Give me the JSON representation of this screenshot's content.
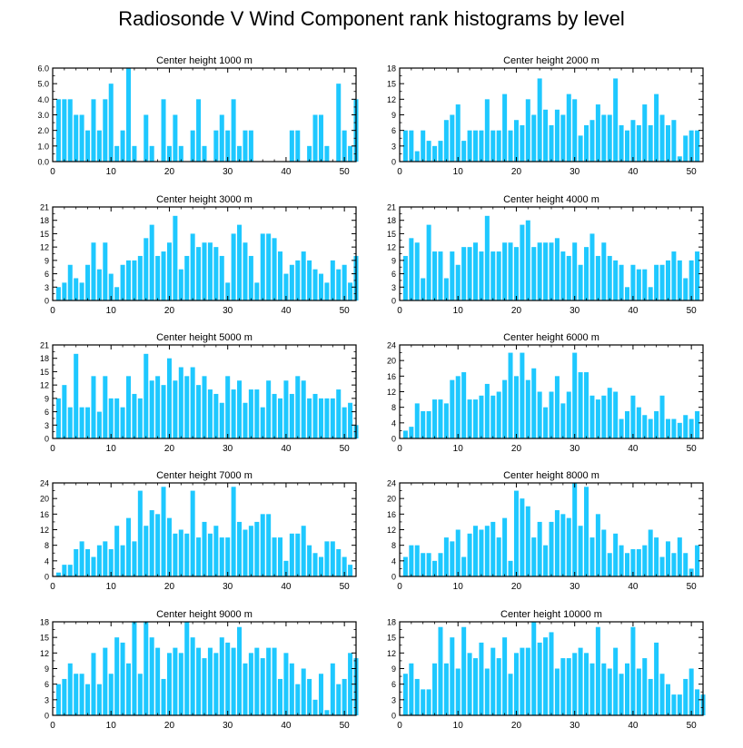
{
  "title": "Radiosonde V Wind Component rank histograms by level",
  "colors": {
    "bar": "#1ec8ff",
    "axis": "#000000",
    "background": "#ffffff"
  },
  "chart_data": [
    {
      "type": "bar",
      "title": "Center height 1000 m",
      "xlim": [
        0,
        52
      ],
      "ylim": [
        0,
        6
      ],
      "xticks": [
        0,
        10,
        20,
        30,
        40,
        50
      ],
      "yticks": [
        0,
        1,
        2,
        3,
        4,
        5,
        6
      ],
      "ytick_labels": [
        "0.0",
        "1.0",
        "2.0",
        "3.0",
        "4.0",
        "5.0",
        "6.0"
      ],
      "categories": [
        1,
        2,
        3,
        4,
        5,
        6,
        7,
        8,
        9,
        10,
        11,
        12,
        13,
        14,
        15,
        16,
        17,
        18,
        19,
        20,
        21,
        22,
        23,
        24,
        25,
        26,
        27,
        28,
        29,
        30,
        31,
        32,
        33,
        34,
        35,
        36,
        37,
        38,
        39,
        40,
        41,
        42,
        43,
        44,
        45,
        46,
        47,
        48,
        49,
        50,
        51,
        52
      ],
      "values": [
        4,
        4,
        4,
        3,
        3,
        2,
        4,
        2,
        4,
        5,
        1,
        2,
        6,
        1,
        0,
        3,
        1,
        0,
        4,
        1,
        3,
        1,
        0,
        2,
        4,
        1,
        0,
        2,
        3,
        2,
        4,
        1,
        2,
        2,
        0,
        0,
        0,
        0,
        0,
        0,
        2,
        2,
        0,
        1,
        3,
        3,
        1,
        0,
        5,
        2,
        1,
        4
      ],
      "xlabel": "",
      "ylabel": ""
    },
    {
      "type": "bar",
      "title": "Center height 2000 m",
      "xlim": [
        0,
        52
      ],
      "ylim": [
        0,
        18
      ],
      "xticks": [
        0,
        10,
        20,
        30,
        40,
        50
      ],
      "yticks": [
        0,
        3,
        6,
        9,
        12,
        15,
        18
      ],
      "ytick_labels": [
        "0",
        "3",
        "6",
        "9",
        "12",
        "15",
        "18"
      ],
      "categories": [
        1,
        2,
        3,
        4,
        5,
        6,
        7,
        8,
        9,
        10,
        11,
        12,
        13,
        14,
        15,
        16,
        17,
        18,
        19,
        20,
        21,
        22,
        23,
        24,
        25,
        26,
        27,
        28,
        29,
        30,
        31,
        32,
        33,
        34,
        35,
        36,
        37,
        38,
        39,
        40,
        41,
        42,
        43,
        44,
        45,
        46,
        47,
        48,
        49,
        50,
        51,
        52
      ],
      "values": [
        6,
        6,
        2,
        6,
        4,
        3,
        4,
        8,
        9,
        11,
        4,
        6,
        6,
        6,
        12,
        6,
        6,
        13,
        6,
        8,
        7,
        12,
        9,
        16,
        10,
        7,
        10,
        9,
        13,
        12,
        5,
        7,
        8,
        11,
        9,
        9,
        16,
        7,
        6,
        8,
        7,
        11,
        7,
        13,
        9,
        7,
        8,
        1,
        5,
        6,
        6,
        0
      ],
      "xlabel": "",
      "ylabel": ""
    },
    {
      "type": "bar",
      "title": "Center height 3000 m",
      "xlim": [
        0,
        52
      ],
      "ylim": [
        0,
        21
      ],
      "xticks": [
        0,
        10,
        20,
        30,
        40,
        50
      ],
      "yticks": [
        0,
        3,
        6,
        9,
        12,
        15,
        18,
        21
      ],
      "ytick_labels": [
        "0",
        "3",
        "6",
        "9",
        "12",
        "15",
        "18",
        "21"
      ],
      "categories": [
        1,
        2,
        3,
        4,
        5,
        6,
        7,
        8,
        9,
        10,
        11,
        12,
        13,
        14,
        15,
        16,
        17,
        18,
        19,
        20,
        21,
        22,
        23,
        24,
        25,
        26,
        27,
        28,
        29,
        30,
        31,
        32,
        33,
        34,
        35,
        36,
        37,
        38,
        39,
        40,
        41,
        42,
        43,
        44,
        45,
        46,
        47,
        48,
        49,
        50,
        51,
        52
      ],
      "values": [
        3,
        4,
        8,
        5,
        4,
        8,
        13,
        7,
        13,
        6,
        3,
        8,
        9,
        9,
        10,
        14,
        17,
        10,
        11,
        13,
        19,
        7,
        10,
        15,
        12,
        13,
        13,
        12,
        10,
        4,
        15,
        17,
        13,
        10,
        4,
        15,
        15,
        14,
        11,
        6,
        8,
        9,
        11,
        9,
        7,
        6,
        4,
        9,
        7,
        8,
        4,
        10
      ],
      "xlabel": "",
      "ylabel": ""
    },
    {
      "type": "bar",
      "title": "Center height 4000 m",
      "xlim": [
        0,
        52
      ],
      "ylim": [
        0,
        21
      ],
      "xticks": [
        0,
        10,
        20,
        30,
        40,
        50
      ],
      "yticks": [
        0,
        3,
        6,
        9,
        12,
        15,
        18,
        21
      ],
      "ytick_labels": [
        "0",
        "3",
        "6",
        "9",
        "12",
        "15",
        "18",
        "21"
      ],
      "categories": [
        1,
        2,
        3,
        4,
        5,
        6,
        7,
        8,
        9,
        10,
        11,
        12,
        13,
        14,
        15,
        16,
        17,
        18,
        19,
        20,
        21,
        22,
        23,
        24,
        25,
        26,
        27,
        28,
        29,
        30,
        31,
        32,
        33,
        34,
        35,
        36,
        37,
        38,
        39,
        40,
        41,
        42,
        43,
        44,
        45,
        46,
        47,
        48,
        49,
        50,
        51,
        52
      ],
      "values": [
        10,
        14,
        13,
        5,
        17,
        11,
        11,
        5,
        11,
        8,
        12,
        12,
        13,
        11,
        19,
        11,
        11,
        13,
        13,
        12,
        17,
        18,
        12,
        13,
        13,
        13,
        14,
        11,
        10,
        13,
        8,
        12,
        15,
        10,
        13,
        10,
        9,
        8,
        3,
        8,
        7,
        7,
        3,
        8,
        8,
        9,
        11,
        9,
        5,
        9,
        11,
        0
      ],
      "xlabel": "",
      "ylabel": ""
    },
    {
      "type": "bar",
      "title": "Center height 5000 m",
      "xlim": [
        0,
        52
      ],
      "ylim": [
        0,
        21
      ],
      "xticks": [
        0,
        10,
        20,
        30,
        40,
        50
      ],
      "yticks": [
        0,
        3,
        6,
        9,
        12,
        15,
        18,
        21
      ],
      "ytick_labels": [
        "0",
        "3",
        "6",
        "9",
        "12",
        "15",
        "18",
        "21"
      ],
      "categories": [
        1,
        2,
        3,
        4,
        5,
        6,
        7,
        8,
        9,
        10,
        11,
        12,
        13,
        14,
        15,
        16,
        17,
        18,
        19,
        20,
        21,
        22,
        23,
        24,
        25,
        26,
        27,
        28,
        29,
        30,
        31,
        32,
        33,
        34,
        35,
        36,
        37,
        38,
        39,
        40,
        41,
        42,
        43,
        44,
        45,
        46,
        47,
        48,
        49,
        50,
        51,
        52
      ],
      "values": [
        9,
        12,
        7,
        19,
        7,
        7,
        14,
        6,
        14,
        9,
        9,
        7,
        14,
        10,
        9,
        19,
        13,
        14,
        12,
        18,
        13,
        16,
        14,
        16,
        12,
        14,
        11,
        10,
        8,
        14,
        11,
        13,
        8,
        11,
        11,
        7,
        13,
        10,
        9,
        13,
        10,
        14,
        13,
        9,
        10,
        9,
        9,
        9,
        11,
        7,
        8,
        3
      ],
      "xlabel": "",
      "ylabel": ""
    },
    {
      "type": "bar",
      "title": "Center height 6000 m",
      "xlim": [
        0,
        52
      ],
      "ylim": [
        0,
        24
      ],
      "xticks": [
        0,
        10,
        20,
        30,
        40,
        50
      ],
      "yticks": [
        0,
        4,
        8,
        12,
        16,
        20,
        24
      ],
      "ytick_labels": [
        "0",
        "4",
        "8",
        "12",
        "16",
        "20",
        "24"
      ],
      "categories": [
        1,
        2,
        3,
        4,
        5,
        6,
        7,
        8,
        9,
        10,
        11,
        12,
        13,
        14,
        15,
        16,
        17,
        18,
        19,
        20,
        21,
        22,
        23,
        24,
        25,
        26,
        27,
        28,
        29,
        30,
        31,
        32,
        33,
        34,
        35,
        36,
        37,
        38,
        39,
        40,
        41,
        42,
        43,
        44,
        45,
        46,
        47,
        48,
        49,
        50,
        51,
        52
      ],
      "values": [
        2,
        3,
        9,
        7,
        7,
        10,
        10,
        9,
        15,
        16,
        17,
        10,
        10,
        11,
        14,
        11,
        12,
        15,
        22,
        16,
        22,
        15,
        18,
        12,
        8,
        12,
        16,
        9,
        12,
        22,
        17,
        17,
        11,
        10,
        11,
        13,
        12,
        5,
        7,
        11,
        8,
        6,
        5,
        7,
        11,
        5,
        5,
        4,
        6,
        5,
        7,
        0
      ],
      "xlabel": "",
      "ylabel": ""
    },
    {
      "type": "bar",
      "title": "Center height 7000 m",
      "xlim": [
        0,
        52
      ],
      "ylim": [
        0,
        24
      ],
      "xticks": [
        0,
        10,
        20,
        30,
        40,
        50
      ],
      "yticks": [
        0,
        4,
        8,
        12,
        16,
        20,
        24
      ],
      "ytick_labels": [
        "0",
        "4",
        "8",
        "12",
        "16",
        "20",
        "24"
      ],
      "categories": [
        1,
        2,
        3,
        4,
        5,
        6,
        7,
        8,
        9,
        10,
        11,
        12,
        13,
        14,
        15,
        16,
        17,
        18,
        19,
        20,
        21,
        22,
        23,
        24,
        25,
        26,
        27,
        28,
        29,
        30,
        31,
        32,
        33,
        34,
        35,
        36,
        37,
        38,
        39,
        40,
        41,
        42,
        43,
        44,
        45,
        46,
        47,
        48,
        49,
        50,
        51,
        52
      ],
      "values": [
        1,
        3,
        3,
        7,
        9,
        7,
        5,
        8,
        9,
        7,
        13,
        8,
        15,
        9,
        22,
        13,
        17,
        16,
        23,
        15,
        11,
        12,
        11,
        22,
        10,
        14,
        11,
        13,
        10,
        10,
        23,
        14,
        12,
        13,
        14,
        16,
        16,
        10,
        10,
        4,
        11,
        11,
        13,
        8,
        6,
        5,
        9,
        9,
        7,
        5,
        3,
        0
      ],
      "xlabel": "",
      "ylabel": ""
    },
    {
      "type": "bar",
      "title": "Center height 8000 m",
      "xlim": [
        0,
        52
      ],
      "ylim": [
        0,
        24
      ],
      "xticks": [
        0,
        10,
        20,
        30,
        40,
        50
      ],
      "yticks": [
        0,
        4,
        8,
        12,
        16,
        20,
        24
      ],
      "ytick_labels": [
        "0",
        "4",
        "8",
        "12",
        "16",
        "20",
        "24"
      ],
      "categories": [
        1,
        2,
        3,
        4,
        5,
        6,
        7,
        8,
        9,
        10,
        11,
        12,
        13,
        14,
        15,
        16,
        17,
        18,
        19,
        20,
        21,
        22,
        23,
        24,
        25,
        26,
        27,
        28,
        29,
        30,
        31,
        32,
        33,
        34,
        35,
        36,
        37,
        38,
        39,
        40,
        41,
        42,
        43,
        44,
        45,
        46,
        47,
        48,
        49,
        50,
        51,
        52
      ],
      "values": [
        5,
        8,
        8,
        6,
        6,
        4,
        6,
        10,
        9,
        12,
        5,
        11,
        13,
        12,
        13,
        14,
        10,
        15,
        4,
        22,
        20,
        18,
        10,
        14,
        8,
        14,
        17,
        16,
        15,
        24,
        13,
        23,
        10,
        16,
        12,
        6,
        11,
        8,
        6,
        7,
        7,
        8,
        12,
        10,
        5,
        9,
        6,
        10,
        6,
        2,
        8,
        0
      ],
      "xlabel": "",
      "ylabel": ""
    },
    {
      "type": "bar",
      "title": "Center height 9000 m",
      "xlim": [
        0,
        52
      ],
      "ylim": [
        0,
        18
      ],
      "xticks": [
        0,
        10,
        20,
        30,
        40,
        50
      ],
      "yticks": [
        0,
        3,
        6,
        9,
        12,
        15,
        18
      ],
      "ytick_labels": [
        "0",
        "3",
        "6",
        "9",
        "12",
        "15",
        "18"
      ],
      "categories": [
        1,
        2,
        3,
        4,
        5,
        6,
        7,
        8,
        9,
        10,
        11,
        12,
        13,
        14,
        15,
        16,
        17,
        18,
        19,
        20,
        21,
        22,
        23,
        24,
        25,
        26,
        27,
        28,
        29,
        30,
        31,
        32,
        33,
        34,
        35,
        36,
        37,
        38,
        39,
        40,
        41,
        42,
        43,
        44,
        45,
        46,
        47,
        48,
        49,
        50,
        51,
        52
      ],
      "values": [
        6,
        7,
        10,
        8,
        8,
        6,
        12,
        6,
        13,
        8,
        15,
        14,
        10,
        18,
        8,
        18,
        15,
        13,
        7,
        12,
        13,
        12,
        18,
        15,
        13,
        11,
        13,
        12,
        15,
        14,
        13,
        17,
        10,
        12,
        13,
        11,
        13,
        13,
        7,
        12,
        10,
        6,
        9,
        7,
        3,
        8,
        1,
        10,
        6,
        7,
        12,
        11
      ],
      "xlabel": "",
      "ylabel": ""
    },
    {
      "type": "bar",
      "title": "Center height 10000 m",
      "xlim": [
        0,
        52
      ],
      "ylim": [
        0,
        18
      ],
      "xticks": [
        0,
        10,
        20,
        30,
        40,
        50
      ],
      "yticks": [
        0,
        3,
        6,
        9,
        12,
        15,
        18
      ],
      "ytick_labels": [
        "0",
        "3",
        "6",
        "9",
        "12",
        "15",
        "18"
      ],
      "categories": [
        1,
        2,
        3,
        4,
        5,
        6,
        7,
        8,
        9,
        10,
        11,
        12,
        13,
        14,
        15,
        16,
        17,
        18,
        19,
        20,
        21,
        22,
        23,
        24,
        25,
        26,
        27,
        28,
        29,
        30,
        31,
        32,
        33,
        34,
        35,
        36,
        37,
        38,
        39,
        40,
        41,
        42,
        43,
        44,
        45,
        46,
        47,
        48,
        49,
        50,
        51,
        52
      ],
      "values": [
        8,
        10,
        7,
        5,
        5,
        10,
        17,
        10,
        15,
        9,
        17,
        12,
        11,
        14,
        9,
        13,
        11,
        15,
        8,
        12,
        13,
        13,
        18,
        14,
        15,
        16,
        9,
        11,
        11,
        12,
        13,
        12,
        10,
        17,
        10,
        9,
        13,
        8,
        10,
        17,
        9,
        11,
        7,
        14,
        8,
        6,
        4,
        4,
        7,
        9,
        5,
        4
      ],
      "xlabel": "",
      "ylabel": ""
    }
  ]
}
